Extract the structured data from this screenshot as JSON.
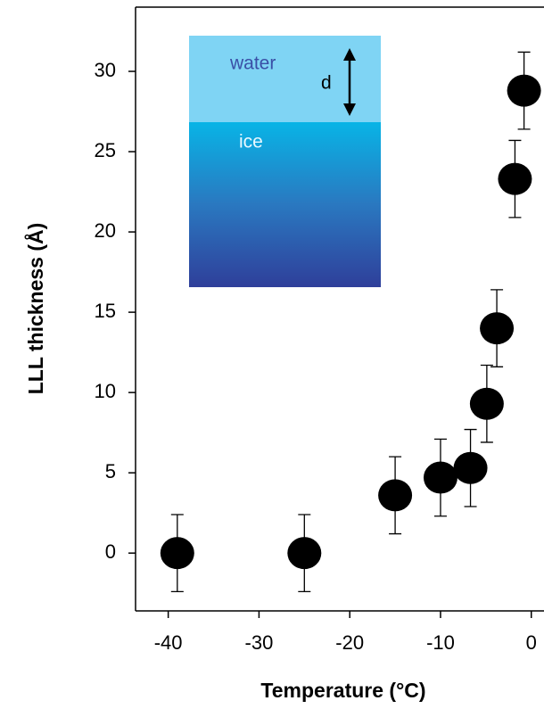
{
  "chart_data": {
    "type": "scatter",
    "x_label": "Temperature (°C)",
    "y_label": "LLL thickness (Å)",
    "series": [
      {
        "color": "#000000",
        "x": [
          -39,
          -25,
          -15,
          -10,
          -6.7,
          -4.9,
          -3.8,
          -1.8,
          -0.8
        ],
        "values": [
          0,
          0,
          3.6,
          4.7,
          5.3,
          9.3,
          14,
          23.3,
          28.8
        ],
        "errors": [
          2.4,
          2.4,
          2.4,
          2.4,
          2.4,
          2.4,
          2.4,
          2.4,
          2.4
        ]
      }
    ],
    "xlim": [
      -43.6,
      1.4
    ],
    "ylim": [
      -3.6,
      34
    ],
    "xticks": [
      -40,
      -30,
      -20,
      -10,
      0
    ],
    "yticks": [
      0,
      5,
      10,
      15,
      20,
      25,
      30
    ],
    "inset_labels": [
      "water",
      "d",
      "ice"
    ]
  }
}
